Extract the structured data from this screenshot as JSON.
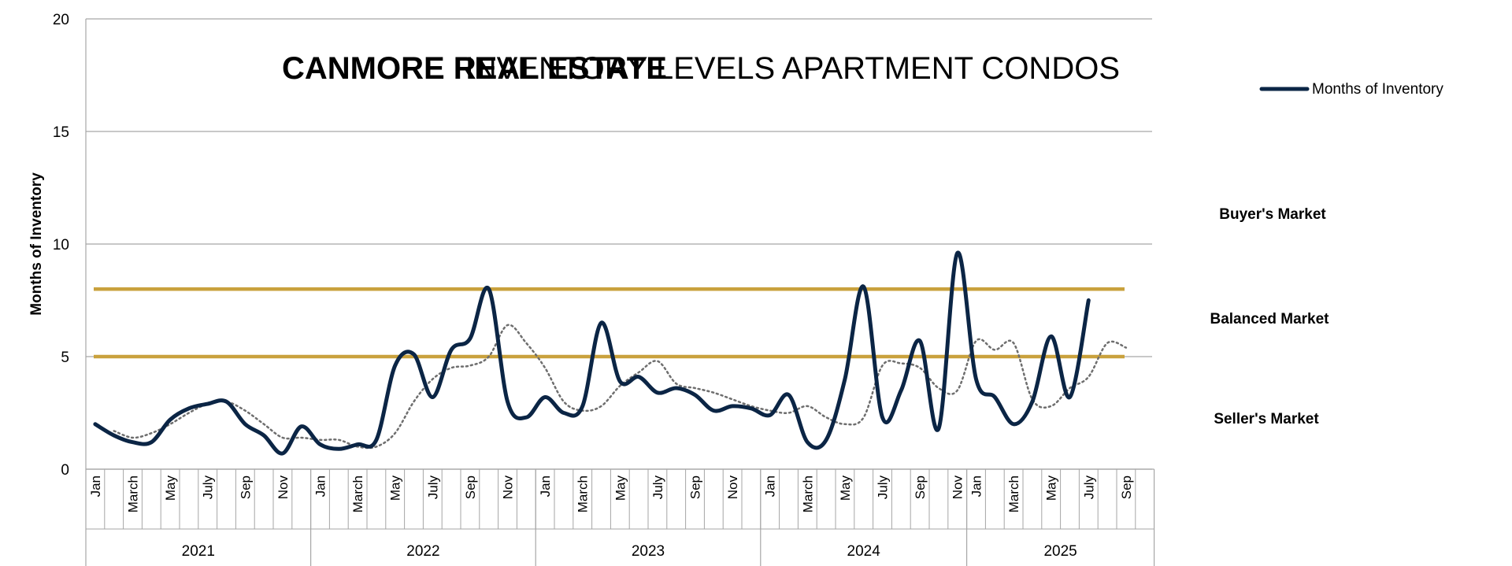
{
  "chart_data": {
    "type": "line",
    "title_bold": "CANMORE REAL ESTATE",
    "title_rest": "INVENTORY LEVELS APARTMENT CONDOS",
    "ylabel": "Months of Inventory",
    "ylim": [
      0,
      20
    ],
    "yticks": [
      0,
      5,
      10,
      15,
      20
    ],
    "grid": true,
    "legend": {
      "position": "top-right",
      "entries": [
        "Months of Inventory"
      ]
    },
    "month_labels": [
      "Jan",
      "",
      "March",
      "",
      "May",
      "",
      "July",
      "",
      "Sep",
      "",
      "Nov",
      ""
    ],
    "years": [
      "2021",
      "2022",
      "2023",
      "2024",
      "2025"
    ],
    "months_per_year": [
      12,
      12,
      12,
      11,
      10
    ],
    "series": [
      {
        "name": "Months of Inventory",
        "color": "#0b2545",
        "style": "solid",
        "values": [
          2.0,
          1.5,
          1.2,
          1.2,
          2.2,
          2.7,
          2.9,
          3.0,
          2.0,
          1.5,
          0.7,
          1.9,
          1.1,
          0.9,
          1.1,
          1.3,
          4.6,
          5.1,
          3.2,
          5.3,
          5.8,
          8.0,
          3.0,
          2.3,
          3.2,
          2.5,
          2.8,
          6.5,
          3.9,
          4.1,
          3.4,
          3.6,
          3.3,
          2.6,
          2.8,
          2.7,
          2.4,
          3.3,
          1.2,
          1.3,
          4.0,
          8.1,
          2.3,
          3.5,
          5.7,
          1.8,
          9.6,
          4.0,
          3.2,
          2.0,
          3.0,
          5.9,
          3.2,
          7.5
        ]
      },
      {
        "name": "",
        "color": "#6e6e6e",
        "style": "dotted",
        "offset": 1,
        "values": [
          1.7,
          1.4,
          1.6,
          2.0,
          2.5,
          2.9,
          3.0,
          2.6,
          2.0,
          1.4,
          1.4,
          1.3,
          1.3,
          1.0,
          1.0,
          1.6,
          3.0,
          4.0,
          4.5,
          4.6,
          5.0,
          6.4,
          5.6,
          4.5,
          3.0,
          2.6,
          2.8,
          3.7,
          4.3,
          4.8,
          3.8,
          3.6,
          3.4,
          3.1,
          2.8,
          2.6,
          2.5,
          2.8,
          2.3,
          2.0,
          2.3,
          4.6,
          4.7,
          4.5,
          3.6,
          3.5,
          5.7,
          5.3,
          5.6,
          3.1,
          2.8,
          3.6,
          4.1,
          5.6,
          5.4
        ]
      }
    ],
    "thresholds": [
      {
        "value": 8,
        "color": "#c9a13d"
      },
      {
        "value": 5,
        "color": "#c9a13d"
      }
    ],
    "zones": [
      "Buyer's Market",
      "Balanced Market",
      "Seller's Market"
    ]
  }
}
